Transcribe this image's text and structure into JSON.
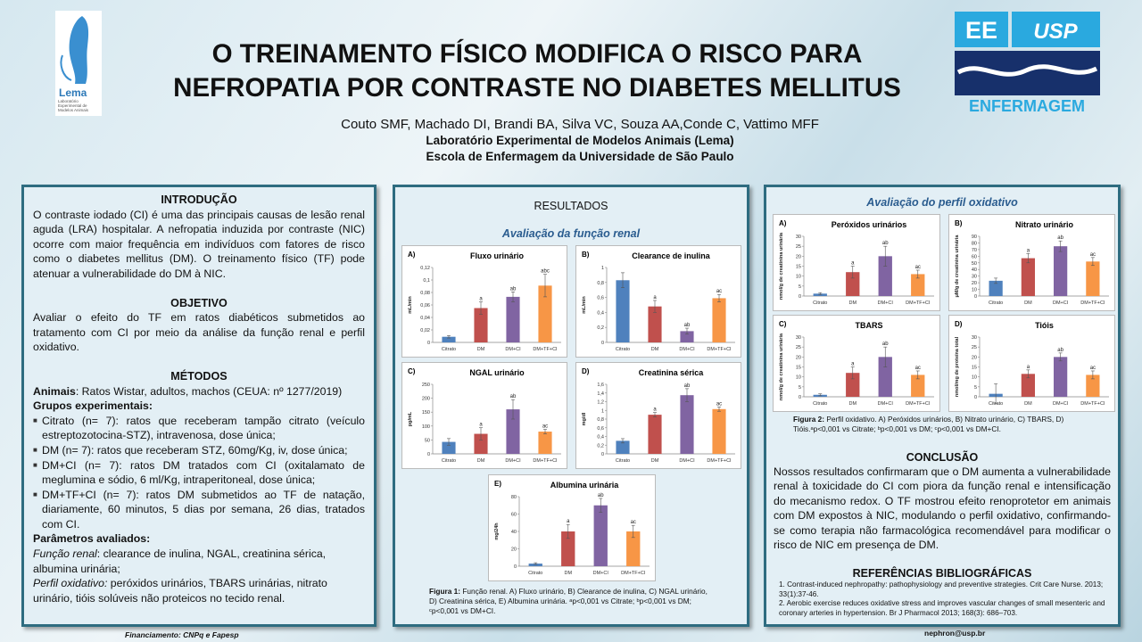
{
  "header": {
    "title_lines": [
      "O TREINAMENTO FÍSICO MODIFICA O RISCO PARA",
      "NEFROPATIA POR CONTRASTE NO DIABETES MELLITUS"
    ],
    "authors": "Couto SMF, Machado DI, Brandi BA, Silva VC, Souza AA,Conde C, Vattimo MFF",
    "lab": "Laboratório Experimental de Modelos Animais  (Lema)",
    "school": "Escola de Enfermagem da Universidade de São Paulo",
    "logo_left": {
      "name": "Lema",
      "text": "Laboratório Experimental de Modelos Animais"
    },
    "logo_right": {
      "ee": "EE",
      "usp": "USP",
      "enfermagem": "ENFERMAGEM"
    }
  },
  "intro": {
    "heading": "INTRODUÇÃO",
    "text": "O contraste iodado (CI) é uma das principais causas de lesão renal aguda (LRA) hospitalar. A nefropatia induzida por contraste (NIC) ocorre com maior frequência em indivíduos com fatores de risco como o diabetes mellitus (DM). O treinamento físico (TF) pode atenuar a vulnerabilidade do DM à NIC."
  },
  "objective": {
    "heading": "OBJETIVO",
    "text": "Avaliar o efeito do TF em ratos diabéticos submetidos ao tratamento com CI por meio da análise da  função renal e perfil oxidativo."
  },
  "methods": {
    "heading": "MÉTODOS",
    "animals_label": "Animais",
    "animals_text": ": Ratos Wistar, adultos, machos (CEUA: nº 1277/2019)",
    "groups_label": "Grupos experimentais:",
    "groups": [
      "Citrato (n= 7): ratos que receberam tampão citrato (veículo estreptozotocina-STZ),  intravenosa, dose única;",
      " DM (n= 7): ratos que receberam STZ, 60mg/Kg, iv, dose única;",
      "DM+CI (n= 7): ratos DM tratados com CI (oxitalamato de meglumina e sódio, 6 ml/Kg, intraperitoneal,  dose única;",
      "DM+TF+CI (n= 7): ratos DM submetidos ao TF de natação, diariamente, 60 minutos, 5 dias por semana, 26 dias, tratados com CI."
    ],
    "params_label": "Parâmetros avaliados:",
    "params": [
      {
        "label": "Função renal",
        "text": ": clearance de inulina, NGAL, creatinina sérica, albumina urinária;"
      },
      {
        "label": "Perfil oxidativo:",
        "text": " peróxidos urinários, TBARS urinárias, nitrato urinário, tióis solúveis não proteicos no tecido renal."
      }
    ]
  },
  "results": {
    "heading": "RESULTADOS",
    "subtitle": "Avaliação da função renal",
    "caption_label": "Figura 1:",
    "caption": " Função renal. A) Fluxo urinário, B) Clearance de inulina, C) NGAL urinário, D) Creatinina sérica, E) Albumina urinária. ᵃp<0,001 vs Citrate; ᵇp<0,001 vs DM; ᶜp<0,001 vs DM+CI."
  },
  "oxidative": {
    "subtitle": "Avaliação do perfil oxidativo",
    "caption_label": "Figura 2:",
    "caption": " Perfil oxidativo. A) Peróxidos urinários, B) Nitrato urinário, C) TBARS, D) Tióis.ᵃp<0,001  vs Citrate; ᵇp<0,001 vs DM; ᶜp<0,001 vs DM+CI."
  },
  "conclusion": {
    "heading": "CONCLUSÃO",
    "text": "Nossos resultados confirmaram que o DM aumenta a vulnerabilidade renal à toxicidade do CI com piora da função renal e intensificação do mecanismo redox. O TF mostrou efeito renoprotetor em animais com DM expostos à NIC, modulando o perfil oxidativo, confirmando-se como terapia não farmacológica recomendável para modificar o risco de NIC em presença de DM."
  },
  "references": {
    "heading": "REFERÊNCIAS  BIBLIOGRÁFICAS",
    "items": [
      "1. Contrast-induced nephropathy: pathophysiology and preventive strategies. Crit Care Nurse. 2013; 33(1):37-46.",
      "2. Aerobic exercise reduces oxidative stress and improves vascular changes of small mesenteric and coronary arteries in hypertension. Br J Pharmacol 2013; 168(3): 686–703."
    ]
  },
  "footer": {
    "funding": "Financiamento: CNPq e Fapesp",
    "email": "nephron@usp.br"
  },
  "chart_data": [
    {
      "type": "bar",
      "label": "A)",
      "title": "Fluxo urinário",
      "y_label": "mL/min",
      "categories": [
        "Citrato",
        "DM",
        "DM+CI",
        "DM+TF+CI"
      ],
      "colors": [
        "#4f81bd",
        "#c0504d",
        "#8064a2",
        "#f79646"
      ],
      "values": [
        0.009,
        0.055,
        0.073,
        0.091
      ],
      "errors": [
        0.002,
        0.01,
        0.008,
        0.018
      ],
      "annotations": [
        null,
        "a",
        "ab",
        "abc"
      ],
      "ylim": [
        0,
        0.12
      ],
      "yticks": [
        0,
        {
          "value": 0.02,
          "label": "0,02"
        },
        {
          "value": 0.04,
          "label": "0,04"
        },
        {
          "value": 0.06,
          "label": "0,06"
        },
        {
          "value": 0.08,
          "label": "0,08"
        },
        {
          "value": 0.1,
          "label": "0,1"
        },
        {
          "value": 0.12,
          "label": "0,12"
        }
      ]
    },
    {
      "type": "bar",
      "label": "B)",
      "title": "Clearance de inulina",
      "y_label": "mL/min",
      "categories": [
        "Citrato",
        "DM",
        "DM+CI",
        "DM+TF+CI"
      ],
      "colors": [
        "#4f81bd",
        "#c0504d",
        "#8064a2",
        "#f79646"
      ],
      "values": [
        0.83,
        0.48,
        0.15,
        0.59
      ],
      "errors": [
        0.1,
        0.08,
        0.04,
        0.05
      ],
      "annotations": [
        null,
        "a",
        "ab",
        "ac"
      ],
      "ylim": [
        0,
        1
      ],
      "yticks": [
        0,
        {
          "value": 0.2,
          "label": "0,2"
        },
        {
          "value": 0.4,
          "label": "0,4"
        },
        {
          "value": 0.6,
          "label": "0,6"
        },
        {
          "value": 0.8,
          "label": "0,8"
        },
        1
      ]
    },
    {
      "type": "bar",
      "label": "C)",
      "title": "NGAL urinário",
      "y_label": "pg/mL",
      "categories": [
        "Citrato",
        "DM",
        "DM+CI",
        "DM+TF+CI"
      ],
      "colors": [
        "#4f81bd",
        "#c0504d",
        "#8064a2",
        "#f79646"
      ],
      "values": [
        43,
        72,
        160,
        80
      ],
      "errors": [
        12,
        22,
        35,
        8
      ],
      "annotations": [
        null,
        "a",
        "ab",
        "ac"
      ],
      "ylim": [
        0,
        250
      ],
      "yticks": [
        0,
        50,
        100,
        150,
        200,
        250
      ]
    },
    {
      "type": "bar",
      "label": "D)",
      "title": "Creatinina sérica",
      "y_label": "mg/dl",
      "categories": [
        "Citrato",
        "DM",
        "DM+CI",
        "DM+TF+CI"
      ],
      "colors": [
        "#4f81bd",
        "#c0504d",
        "#8064a2",
        "#f79646"
      ],
      "values": [
        0.3,
        0.9,
        1.35,
        1.03
      ],
      "errors": [
        0.05,
        0.05,
        0.15,
        0.05
      ],
      "annotations": [
        null,
        "a",
        "ab",
        "ac"
      ],
      "ylim": [
        0,
        1.6
      ],
      "yticks": [
        0,
        {
          "value": 0.2,
          "label": "0,2"
        },
        {
          "value": 0.4,
          "label": "0,4"
        },
        {
          "value": 0.6,
          "label": "0,6"
        },
        {
          "value": 0.8,
          "label": "0,8"
        },
        1,
        {
          "value": 1.2,
          "label": "1,2"
        },
        {
          "value": 1.4,
          "label": "1,4"
        },
        {
          "value": 1.6,
          "label": "1,6"
        }
      ]
    },
    {
      "type": "bar",
      "label": "E)",
      "title": "Albumina urinária",
      "y_label": "mg/24h",
      "categories": [
        "Citrato",
        "DM",
        "DM+CI",
        "DM+TF+CI"
      ],
      "colors": [
        "#4f81bd",
        "#c0504d",
        "#8064a2",
        "#f79646"
      ],
      "values": [
        3,
        40,
        70,
        40
      ],
      "errors": [
        1,
        8,
        8,
        7
      ],
      "annotations": [
        null,
        "a",
        "ab",
        "ac"
      ],
      "ylim": [
        0,
        80
      ],
      "yticks": [
        0,
        20,
        40,
        60,
        80
      ]
    },
    {
      "type": "bar",
      "label": "A)",
      "title": "Peróxidos urinários",
      "y_label": "nmol/g de creatinina urinária",
      "categories": [
        "Citrato",
        "DM",
        "DM+CI",
        "DM+TF+CI"
      ],
      "colors": [
        "#4f81bd",
        "#c0504d",
        "#8064a2",
        "#f79646"
      ],
      "values": [
        1.2,
        12,
        20,
        11
      ],
      "errors": [
        0.5,
        3,
        5,
        2
      ],
      "annotations": [
        null,
        "a",
        "ab",
        "ac"
      ],
      "ylim": [
        0,
        30
      ],
      "yticks": [
        0,
        5,
        10,
        15,
        20,
        25,
        30
      ]
    },
    {
      "type": "bar",
      "label": "B)",
      "title": "Nitrato urinário",
      "y_label": "μM/g de creatinina urinária",
      "categories": [
        "Citrato",
        "DM",
        "DM+CI",
        "DM+TF+CI"
      ],
      "colors": [
        "#4f81bd",
        "#c0504d",
        "#8064a2",
        "#f79646"
      ],
      "values": [
        23,
        57,
        75,
        52
      ],
      "errors": [
        4,
        7,
        8,
        6
      ],
      "annotations": [
        null,
        "a",
        "ab",
        "ac"
      ],
      "ylim": [
        0,
        90
      ],
      "yticks": [
        0,
        10,
        20,
        30,
        40,
        50,
        60,
        70,
        80,
        90
      ]
    },
    {
      "type": "bar",
      "label": "C)",
      "title": "TBARS",
      "y_label": "nmol/g de creatinina urinária",
      "categories": [
        "Citrato",
        "DM",
        "DM+CI",
        "DM+TF+CI"
      ],
      "colors": [
        "#4f81bd",
        "#c0504d",
        "#8064a2",
        "#f79646"
      ],
      "values": [
        1,
        12,
        20,
        11
      ],
      "errors": [
        0.5,
        3,
        5,
        2
      ],
      "annotations": [
        null,
        "a",
        "ab",
        "ac"
      ],
      "ylim": [
        0,
        30
      ],
      "yticks": [
        0,
        5,
        10,
        15,
        20,
        25,
        30
      ]
    },
    {
      "type": "bar",
      "label": "D)",
      "title": "Tióis",
      "y_label": "nmol/mg de proteína total",
      "categories": [
        "Citrato",
        "DM",
        "DM+CI",
        "DM+TF+CI"
      ],
      "colors": [
        "#4f81bd",
        "#c0504d",
        "#8064a2",
        "#f79646"
      ],
      "values": [
        1.5,
        11.5,
        20,
        11
      ],
      "errors": [
        5,
        2,
        2,
        2
      ],
      "annotations": [
        null,
        "a",
        "ab",
        "ac"
      ],
      "ylim": [
        0,
        30
      ],
      "yticks": [
        0,
        5,
        10,
        15,
        20,
        25,
        30
      ]
    }
  ]
}
